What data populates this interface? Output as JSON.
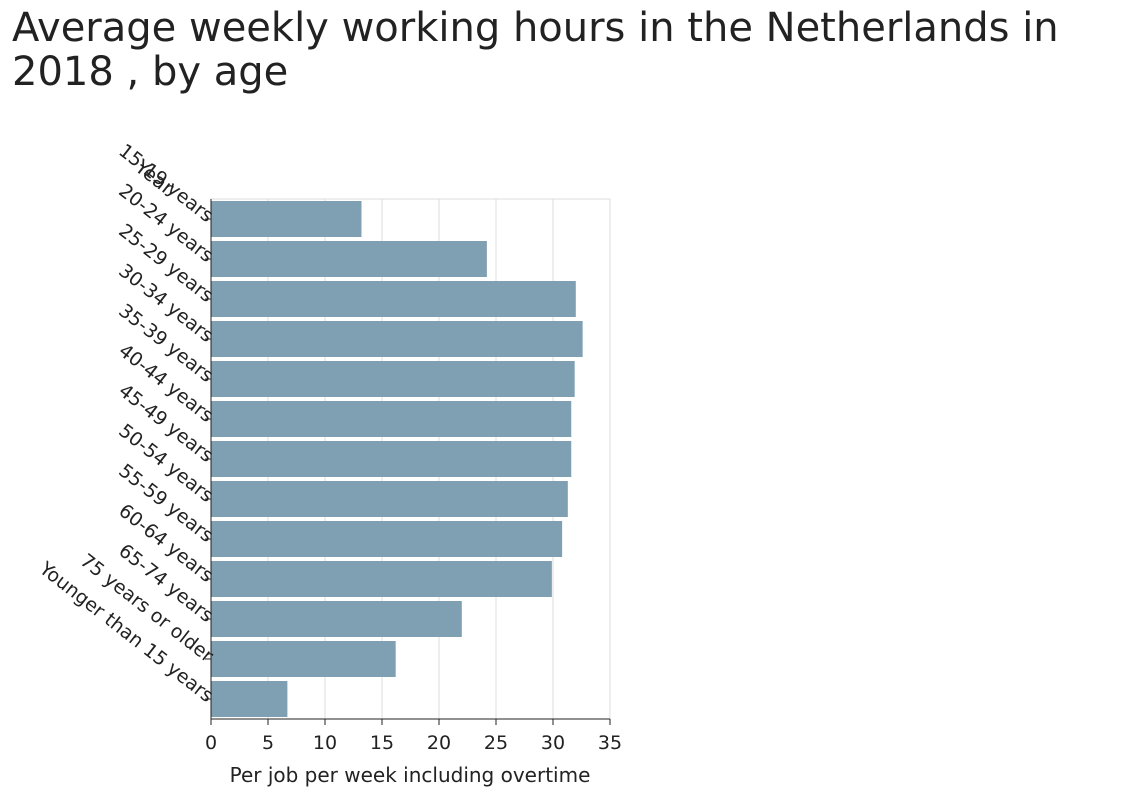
{
  "chart_data": {
    "type": "bar",
    "orientation": "horizontal",
    "title": "Average weekly working hours in the Netherlands in 2018 , by age",
    "xlabel": "Per job per week including overtime",
    "ylabel": "Year",
    "xlim": [
      0,
      35
    ],
    "xticks": [
      "0",
      "5",
      "10",
      "15",
      "20",
      "25",
      "30",
      "35"
    ],
    "grid": true,
    "bar_color": "#7f9fb2",
    "categories": [
      "15-19 years",
      "20-24 years",
      "25-29 years",
      "30-34 years",
      "35-39 years",
      "40-44 years",
      "45-49 years",
      "50-54 years",
      "55-59 years",
      "60-64 years",
      "65-74 years",
      "75 years or older",
      "Younger than 15 years"
    ],
    "values": [
      13.2,
      24.2,
      32.0,
      32.6,
      31.9,
      31.6,
      31.6,
      31.3,
      30.8,
      29.9,
      22.0,
      16.2,
      6.7
    ]
  }
}
